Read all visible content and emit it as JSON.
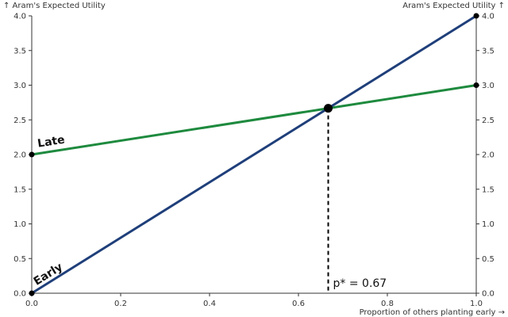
{
  "chart_data": {
    "type": "line",
    "ylabel_left": "↑ Aram's Expected Utility",
    "ylabel_right": "Aram's Expected Utility ↑",
    "xlabel": "Proportion of others planting early →",
    "xlim": [
      0,
      1
    ],
    "ylim": [
      0,
      4
    ],
    "x_ticks": [
      0.0,
      0.2,
      0.4,
      0.6,
      0.8,
      1.0
    ],
    "x_tick_labels": [
      "0.0",
      "0.2",
      "0.4",
      "0.6",
      "0.8",
      "1.0"
    ],
    "y_ticks": [
      0.0,
      0.5,
      1.0,
      1.5,
      2.0,
      2.5,
      3.0,
      3.5,
      4.0
    ],
    "y_tick_labels": [
      "0.0",
      "0.5",
      "1.0",
      "1.5",
      "2.0",
      "2.5",
      "3.0",
      "3.5",
      "4.0"
    ],
    "grid": false,
    "series": [
      {
        "name": "Late",
        "color": "#1e8a3e",
        "x": [
          0,
          1
        ],
        "y": [
          2.0,
          3.0
        ]
      },
      {
        "name": "Early",
        "color": "#1f3f7a",
        "x": [
          0,
          1
        ],
        "y": [
          0.0,
          4.0
        ]
      }
    ],
    "equilibrium": {
      "x": 0.667,
      "y": 2.667,
      "label": "p* = 0.67"
    }
  }
}
